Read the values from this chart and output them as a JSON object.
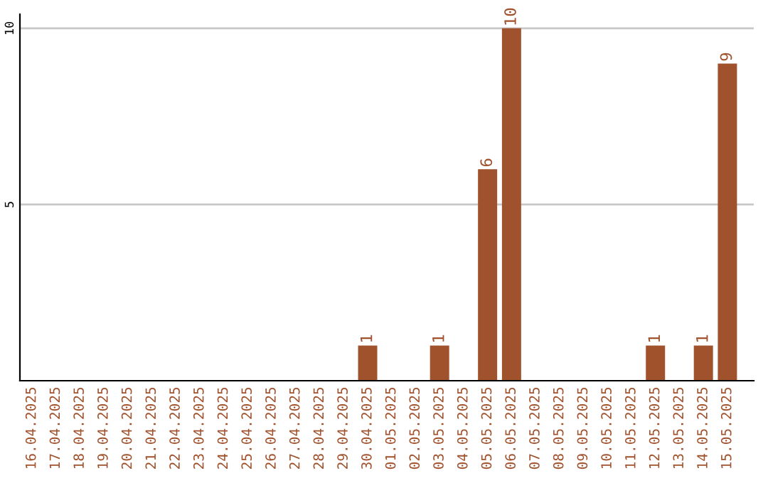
{
  "chart_data": {
    "type": "bar",
    "categories": [
      "16.04.2025",
      "17.04.2025",
      "18.04.2025",
      "19.04.2025",
      "20.04.2025",
      "21.04.2025",
      "22.04.2025",
      "23.04.2025",
      "24.04.2025",
      "25.04.2025",
      "26.04.2025",
      "27.04.2025",
      "28.04.2025",
      "29.04.2025",
      "30.04.2025",
      "01.05.2025",
      "02.05.2025",
      "03.05.2025",
      "04.05.2025",
      "05.05.2025",
      "06.05.2025",
      "07.05.2025",
      "08.05.2025",
      "09.05.2025",
      "10.05.2025",
      "11.05.2025",
      "12.05.2025",
      "13.05.2025",
      "14.05.2025",
      "15.05.2025"
    ],
    "values": [
      0,
      0,
      0,
      0,
      0,
      0,
      0,
      0,
      0,
      0,
      0,
      0,
      0,
      0,
      1,
      0,
      0,
      1,
      0,
      6,
      10,
      0,
      0,
      0,
      0,
      0,
      1,
      0,
      1,
      9
    ],
    "value_labels": [
      null,
      null,
      null,
      null,
      null,
      null,
      null,
      null,
      null,
      null,
      null,
      null,
      null,
      null,
      "1",
      null,
      null,
      "1",
      null,
      "6",
      "10",
      null,
      null,
      null,
      null,
      null,
      "1",
      null,
      "1",
      "9"
    ],
    "color": "#a0522d",
    "ylim": [
      0,
      10.4
    ],
    "yticks": [
      5,
      10
    ],
    "grid": "y",
    "legend": false
  }
}
